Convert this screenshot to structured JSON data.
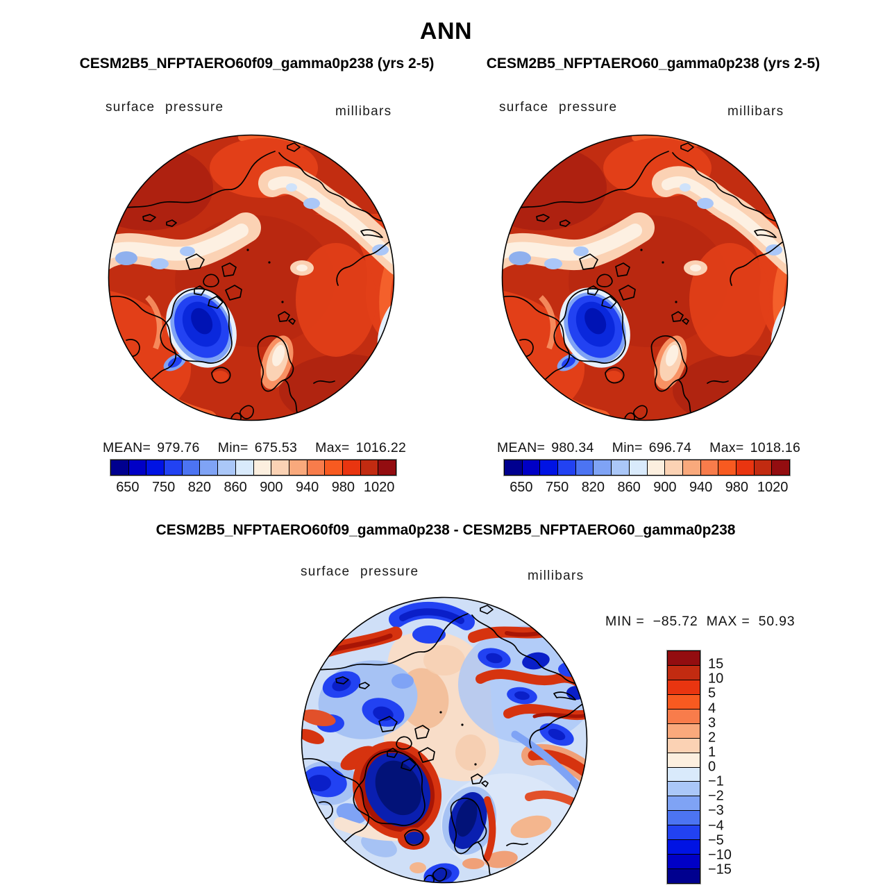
{
  "title": "ANN",
  "panels": {
    "left": {
      "subtitle": "CESM2B5_NFPTAERO60f09_gamma0p238 (yrs 2-5)",
      "field_label": "surface pressure",
      "units_label": "millibars",
      "stats": {
        "mean_label": "MEAN=",
        "mean": "979.76",
        "min_label": "Min=",
        "min": "675.53",
        "max_label": "Max=",
        "max": "1016.22"
      },
      "colorbar_ticks": [
        "650",
        "750",
        "820",
        "860",
        "900",
        "940",
        "980",
        "1020"
      ]
    },
    "right": {
      "subtitle": "CESM2B5_NFPTAERO60_gamma0p238 (yrs 2-5)",
      "field_label": "surface pressure",
      "units_label": "millibars",
      "stats": {
        "mean_label": "MEAN=",
        "mean": "980.34",
        "min_label": "Min=",
        "min": "696.74",
        "max_label": "Max=",
        "max": "1018.16"
      },
      "colorbar_ticks": [
        "650",
        "750",
        "820",
        "860",
        "900",
        "940",
        "980",
        "1020"
      ]
    },
    "diff": {
      "title": "CESM2B5_NFPTAERO60f09_gamma0p238 - CESM2B5_NFPTAERO60_gamma0p238",
      "field_label": "surface pressure",
      "units_label": "millibars",
      "minmax": {
        "min_label": "MIN =",
        "min": "−85.72",
        "max_label": "MAX =",
        "max": "50.93"
      },
      "colorbar_labels": [
        "15",
        "10",
        "5",
        "4",
        "3",
        "2",
        "1",
        "0",
        "−1",
        "−2",
        "−3",
        "−4",
        "−5",
        "−10",
        "−15"
      ]
    }
  },
  "colors": {
    "pressure_palette_left_to_right": [
      "#00008f",
      "#0000c6",
      "#0013e4",
      "#2242f2",
      "#4c74f2",
      "#7fa3f5",
      "#aac7f8",
      "#d9eafb",
      "#fcefdf",
      "#fbd2b4",
      "#f9a97c",
      "#f87c4b",
      "#f85a20",
      "#e93510",
      "#c22b11",
      "#930d10"
    ],
    "diff_palette_top_to_bottom": [
      "#930d10",
      "#c22b11",
      "#e93510",
      "#f85a20",
      "#f87c4b",
      "#f9a97c",
      "#fbd2b4",
      "#fcefdf",
      "#d9eafb",
      "#aac7f8",
      "#7fa3f5",
      "#4c74f2",
      "#2242f2",
      "#0013e4",
      "#0000c6",
      "#00008f"
    ]
  },
  "chart_data": [
    {
      "type": "heatmap",
      "title": "CESM2B5_NFPTAERO60f09_gamma0p238 (yrs 2-5)",
      "field": "surface pressure",
      "units": "millibars",
      "projection": "north polar map",
      "mean": 979.76,
      "min": 675.53,
      "max": 1016.22,
      "colorbar_ticks": [
        650,
        750,
        820,
        860,
        900,
        940,
        980,
        1020
      ],
      "palette": [
        "#00008f",
        "#0000c6",
        "#0013e4",
        "#2242f2",
        "#4c74f2",
        "#7fa3f5",
        "#aac7f8",
        "#d9eafb",
        "#fcefdf",
        "#fbd2b4",
        "#f9a97c",
        "#f87c4b",
        "#f85a20",
        "#e93510",
        "#c22b11",
        "#930d10"
      ]
    },
    {
      "type": "heatmap",
      "title": "CESM2B5_NFPTAERO60_gamma0p238 (yrs 2-5)",
      "field": "surface pressure",
      "units": "millibars",
      "projection": "north polar map",
      "mean": 980.34,
      "min": 696.74,
      "max": 1018.16,
      "colorbar_ticks": [
        650,
        750,
        820,
        860,
        900,
        940,
        980,
        1020
      ],
      "palette": [
        "#00008f",
        "#0000c6",
        "#0013e4",
        "#2242f2",
        "#4c74f2",
        "#7fa3f5",
        "#aac7f8",
        "#d9eafb",
        "#fcefdf",
        "#fbd2b4",
        "#f9a97c",
        "#f87c4b",
        "#f85a20",
        "#e93510",
        "#c22b11",
        "#930d10"
      ]
    },
    {
      "type": "heatmap",
      "title": "CESM2B5_NFPTAERO60f09_gamma0p238 - CESM2B5_NFPTAERO60_gamma0p238",
      "field": "surface pressure difference",
      "units": "millibars",
      "projection": "north polar map",
      "min": -85.72,
      "max": 50.93,
      "colorbar_levels": [
        15,
        10,
        5,
        4,
        3,
        2,
        1,
        0,
        -1,
        -2,
        -3,
        -4,
        -5,
        -10,
        -15
      ],
      "palette_top_to_bottom": [
        "#930d10",
        "#c22b11",
        "#e93510",
        "#f85a20",
        "#f87c4b",
        "#f9a97c",
        "#fbd2b4",
        "#fcefdf",
        "#d9eafb",
        "#aac7f8",
        "#7fa3f5",
        "#4c74f2",
        "#2242f2",
        "#0013e4",
        "#0000c6",
        "#00008f"
      ]
    }
  ]
}
